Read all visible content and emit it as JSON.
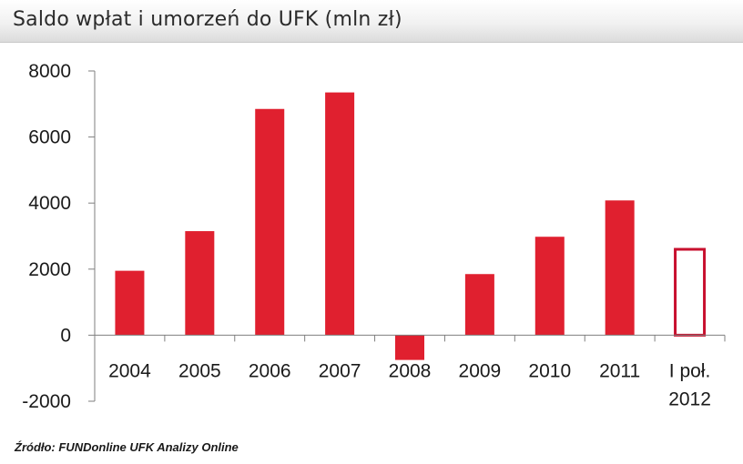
{
  "title": "Saldo wpłat i umorzeń do UFK (mln zł)",
  "source": "Źródło: FUNDonline UFK Analizy Online",
  "colors": {
    "bar": "#e0202f",
    "bar_outline": "#c8102e",
    "axis": "#7f7f7f"
  },
  "chart_data": {
    "type": "bar",
    "title": "Saldo wpłat i umorzeń do UFK (mln zł)",
    "xlabel": "",
    "ylabel": "",
    "categories": [
      "2004",
      "2005",
      "2006",
      "2007",
      "2008",
      "2009",
      "2010",
      "2011",
      "I poł. 2012"
    ],
    "category_lines": [
      [
        "2004"
      ],
      [
        "2005"
      ],
      [
        "2006"
      ],
      [
        "2007"
      ],
      [
        "2008"
      ],
      [
        "2009"
      ],
      [
        "2010"
      ],
      [
        "2011"
      ],
      [
        "I poł.",
        "2012"
      ]
    ],
    "values": [
      1950,
      3150,
      6850,
      7350,
      -750,
      1850,
      2980,
      4080,
      2600
    ],
    "hollow": [
      false,
      false,
      false,
      false,
      false,
      false,
      false,
      false,
      true
    ],
    "ylim": [
      -2000,
      8000
    ],
    "yticks": [
      "8000",
      "6000",
      "4000",
      "2000",
      "0",
      "-2000"
    ],
    "ytick_values": [
      8000,
      6000,
      4000,
      2000,
      0,
      -2000
    ],
    "grid": false,
    "legend": "none"
  }
}
